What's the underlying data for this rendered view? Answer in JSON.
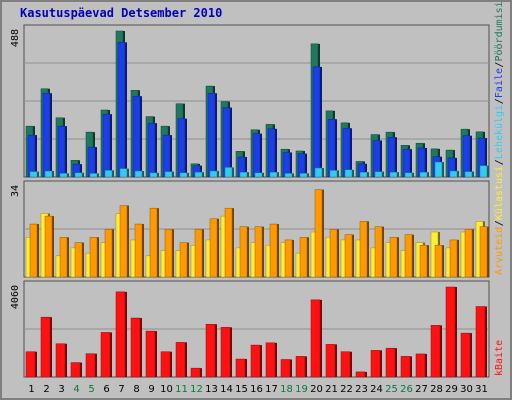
{
  "title": "Kasutuspäevad Detsember 2010",
  "chart_data": [
    {
      "type": "bar",
      "categories": [
        "1",
        "2",
        "3",
        "4",
        "5",
        "6",
        "7",
        "8",
        "9",
        "10",
        "11",
        "12",
        "13",
        "14",
        "15",
        "16",
        "17",
        "18",
        "19",
        "20",
        "21",
        "22",
        "23",
        "24",
        "25",
        "26",
        "27",
        "28",
        "29",
        "30",
        "31"
      ],
      "weekend_days": [
        "4",
        "5",
        "11",
        "12",
        "18",
        "19",
        "25",
        "26"
      ],
      "ymax_label": "488",
      "ylim": [
        0,
        488
      ],
      "series": [
        {
          "name": "Pöördumisi",
          "color": "#207860",
          "values": [
            170,
            295,
            198,
            56,
            150,
            224,
            488,
            290,
            202,
            170,
            245,
            44,
            304,
            252,
            86,
            158,
            176,
            93,
            87,
            445,
            221,
            181,
            52,
            142,
            150,
            106,
            113,
            94,
            90,
            160,
            151
          ]
        },
        {
          "name": "Faile",
          "color": "#1a3ee8",
          "values": [
            140,
            280,
            170,
            43,
            100,
            210,
            450,
            270,
            180,
            140,
            195,
            38,
            280,
            232,
            67,
            145,
            161,
            82,
            78,
            368,
            193,
            163,
            44,
            122,
            133,
            93,
            97,
            68,
            64,
            138,
            130
          ]
        },
        {
          "name": "Lehekülgi",
          "color": "#33ccee",
          "values": [
            18,
            20,
            12,
            14,
            12,
            22,
            28,
            20,
            14,
            18,
            14,
            16,
            20,
            32,
            16,
            14,
            16,
            12,
            12,
            30,
            22,
            24,
            16,
            18,
            16,
            14,
            16,
            50,
            20,
            18,
            38
          ]
        }
      ]
    },
    {
      "type": "bar",
      "categories": [
        "1",
        "2",
        "3",
        "4",
        "5",
        "6",
        "7",
        "8",
        "9",
        "10",
        "11",
        "12",
        "13",
        "14",
        "15",
        "16",
        "17",
        "18",
        "19",
        "20",
        "21",
        "22",
        "23",
        "24",
        "25",
        "26",
        "27",
        "28",
        "29",
        "30",
        "31"
      ],
      "ymax_label": "34",
      "ylim": [
        0,
        34
      ],
      "series": [
        {
          "name": "Külastusi",
          "color": "#ffee33",
          "values": [
            15,
            24,
            8,
            11,
            9,
            13,
            24,
            14,
            8,
            10,
            10,
            12,
            14,
            23,
            11,
            13,
            12,
            13,
            9,
            17,
            15,
            14,
            14,
            11,
            13,
            10,
            13,
            17,
            11,
            17,
            21
          ]
        },
        {
          "name": "Arvuteid",
          "color": "#ff9900",
          "values": [
            20,
            23,
            15,
            13,
            15,
            18,
            27,
            20,
            26,
            18,
            13,
            18,
            22,
            26,
            19,
            19,
            20,
            14,
            15,
            33,
            18,
            16,
            21,
            19,
            15,
            16,
            12,
            12,
            14,
            18,
            19
          ]
        }
      ]
    },
    {
      "type": "bar",
      "categories": [
        "1",
        "2",
        "3",
        "4",
        "5",
        "6",
        "7",
        "8",
        "9",
        "10",
        "11",
        "12",
        "13",
        "14",
        "15",
        "16",
        "17",
        "18",
        "19",
        "20",
        "21",
        "22",
        "23",
        "24",
        "25",
        "26",
        "27",
        "28",
        "29",
        "30",
        "31"
      ],
      "ymax_label": "4060",
      "ylim": [
        0,
        4060
      ],
      "series": [
        {
          "name": "kBaite",
          "color": "#ff1111",
          "values": [
            1140,
            2700,
            1500,
            650,
            1050,
            2010,
            3840,
            2660,
            2070,
            1140,
            1560,
            400,
            2380,
            2240,
            810,
            1440,
            1540,
            790,
            930,
            3480,
            1470,
            1140,
            230,
            1200,
            1300,
            930,
            1040,
            2330,
            4060,
            1980,
            3180
          ]
        }
      ]
    }
  ]
}
